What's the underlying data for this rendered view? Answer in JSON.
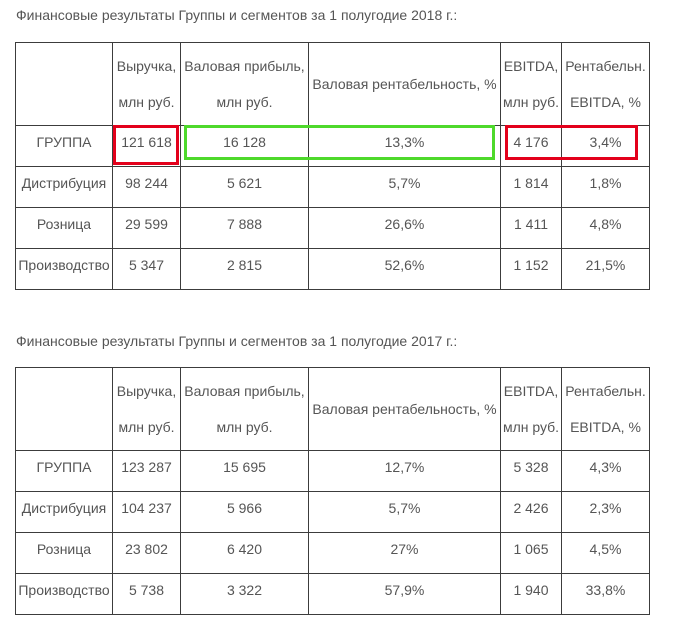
{
  "colors": {
    "text": "#555555",
    "border": "#3c3c3c",
    "highlight_red": "#e3001b",
    "highlight_green": "#4ed92b"
  },
  "headers": {
    "revenue": [
      "Выручка,",
      "млн руб."
    ],
    "gross_profit": [
      "Валовая прибыль,",
      "млн руб."
    ],
    "gross_margin": "Валовая рентабельность, %",
    "ebitda": [
      "EBITDA,",
      "млн руб."
    ],
    "ebitda_margin": [
      "Рентабельн.",
      "EBITDA, %"
    ]
  },
  "tables": [
    {
      "caption": "Финансовые результаты Группы и сегментов за 1 полугодие 2018 г.:",
      "rows": [
        {
          "segment": "ГРУППА",
          "revenue": "121 618",
          "gross_profit": "16 128",
          "gross_margin": "13,3%",
          "ebitda": "4 176",
          "ebitda_margin": "3,4%"
        },
        {
          "segment": "Дистрибуция",
          "revenue": "98 244",
          "gross_profit": "5 621",
          "gross_margin": "5,7%",
          "ebitda": "1 814",
          "ebitda_margin": "1,8%"
        },
        {
          "segment": "Розница",
          "revenue": "29 599",
          "gross_profit": "7 888",
          "gross_margin": "26,6%",
          "ebitda": "1 411",
          "ebitda_margin": "4,8%"
        },
        {
          "segment": "Производство",
          "revenue": "5 347",
          "gross_profit": "2 815",
          "gross_margin": "52,6%",
          "ebitda": "1 152",
          "ebitda_margin": "21,5%"
        }
      ]
    },
    {
      "caption": "Финансовые результаты Группы и сегментов за 1 полугодие 2017 г.:",
      "rows": [
        {
          "segment": "ГРУППА",
          "revenue": "123 287",
          "gross_profit": "15 695",
          "gross_margin": "12,7%",
          "ebitda": "5 328",
          "ebitda_margin": "4,3%"
        },
        {
          "segment": "Дистрибуция",
          "revenue": "104 237",
          "gross_profit": "5 966",
          "gross_margin": "5,7%",
          "ebitda": "2 426",
          "ebitda_margin": "2,3%"
        },
        {
          "segment": "Розница",
          "revenue": "23 802",
          "gross_profit": "6 420",
          "gross_margin": "27%",
          "ebitda": "1 065",
          "ebitda_margin": "4,5%"
        },
        {
          "segment": "Производство",
          "revenue": "5 738",
          "gross_profit": "3 322",
          "gross_margin": "57,9%",
          "ebitda": "1 940",
          "ebitda_margin": "33,8%"
        }
      ]
    }
  ]
}
